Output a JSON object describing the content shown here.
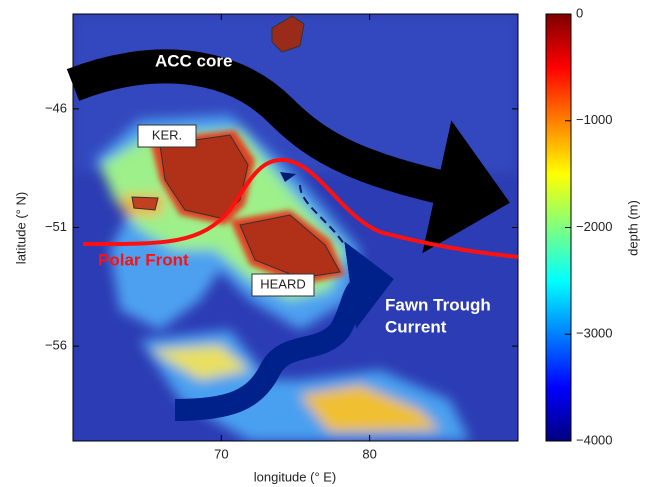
{
  "chart_data": {
    "type": "map",
    "xlabel": "longitude (° E)",
    "ylabel": "latitude (° N)",
    "xlim": [
      60,
      90
    ],
    "ylim": [
      -60,
      -42
    ],
    "xticks": [
      70,
      80
    ],
    "yticks": [
      {
        "value": -46,
        "label": "−46"
      },
      {
        "value": -51,
        "label": "−51"
      },
      {
        "value": -56,
        "label": "−56"
      }
    ],
    "colorbar": {
      "label": "depth (m)",
      "lim": [
        -4000,
        0
      ],
      "ticks": [
        0,
        {
          "value": -1000,
          "label": "−1000"
        },
        {
          "value": -2000,
          "label": "−2000"
        },
        {
          "value": -3000,
          "label": "−3000"
        },
        {
          "value": -4000,
          "label": "−4000"
        }
      ]
    },
    "annotations": {
      "acc": "ACC core",
      "ker": "KER.",
      "heard": "HEARD",
      "front": "Polar Front",
      "fawn": [
        "Fawn Trough",
        "Current"
      ]
    }
  }
}
